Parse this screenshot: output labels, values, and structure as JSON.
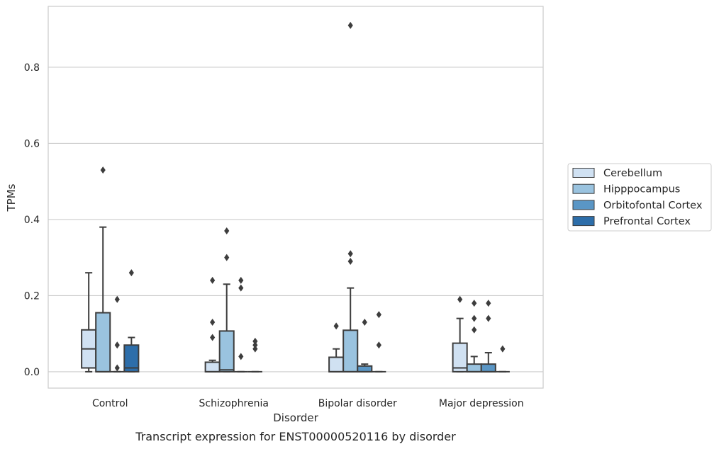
{
  "chart_data": {
    "type": "box",
    "xlabel": "Disorder",
    "ylabel": "TPMs",
    "caption": "Transcript expression for ENST00000520116 by disorder",
    "ylim": [
      -0.043,
      0.96
    ],
    "yticks": [
      0.0,
      0.2,
      0.4,
      0.6,
      0.8
    ],
    "ytick_labels": [
      "0.0",
      "0.2",
      "0.4",
      "0.6",
      "0.8"
    ],
    "grid": "horizontal",
    "legend_position": "right",
    "categories": [
      "Control",
      "Schizophrenia",
      "Bipolar disorder",
      "Major depression"
    ],
    "series": [
      {
        "name": "Cerebellum",
        "color": "#d0e1f2",
        "boxes": [
          {
            "whislo": 0.0,
            "q1": 0.01,
            "med": 0.06,
            "q3": 0.11,
            "whishi": 0.26,
            "fliers": []
          },
          {
            "whislo": 0.0,
            "q1": 0.0,
            "med": 0.0,
            "q3": 0.025,
            "whishi": 0.03,
            "fliers": [
              0.09,
              0.13,
              0.24
            ]
          },
          {
            "whislo": 0.0,
            "q1": 0.0,
            "med": 0.0,
            "q3": 0.038,
            "whishi": 0.06,
            "fliers": [
              0.12
            ]
          },
          {
            "whislo": 0.0,
            "q1": 0.0,
            "med": 0.01,
            "q3": 0.075,
            "whishi": 0.14,
            "fliers": [
              0.19
            ]
          }
        ]
      },
      {
        "name": "Hipppocampus",
        "color": "#9ac3df",
        "boxes": [
          {
            "whislo": 0.0,
            "q1": 0.0,
            "med": 0.0,
            "q3": 0.155,
            "whishi": 0.38,
            "fliers": [
              0.53
            ]
          },
          {
            "whislo": 0.0,
            "q1": 0.0,
            "med": 0.005,
            "q3": 0.107,
            "whishi": 0.23,
            "fliers": [
              0.3,
              0.37
            ]
          },
          {
            "whislo": 0.0,
            "q1": 0.0,
            "med": 0.0,
            "q3": 0.109,
            "whishi": 0.22,
            "fliers": [
              0.29,
              0.31,
              0.91
            ]
          },
          {
            "whislo": 0.0,
            "q1": 0.0,
            "med": 0.0,
            "q3": 0.02,
            "whishi": 0.04,
            "fliers": [
              0.11,
              0.14,
              0.18
            ]
          }
        ]
      },
      {
        "name": "Orbitofontal Cortex",
        "color": "#5a96c5",
        "boxes": [
          {
            "whislo": 0.0,
            "q1": 0.0,
            "med": 0.0,
            "q3": 0.0,
            "whishi": 0.0,
            "fliers": [
              0.01,
              0.07,
              0.19
            ]
          },
          {
            "whislo": 0.0,
            "q1": 0.0,
            "med": 0.0,
            "q3": 0.0,
            "whishi": 0.0,
            "fliers": [
              0.04,
              0.22,
              0.24
            ]
          },
          {
            "whislo": 0.0,
            "q1": 0.0,
            "med": 0.0,
            "q3": 0.015,
            "whishi": 0.02,
            "fliers": [
              0.13
            ]
          },
          {
            "whislo": 0.0,
            "q1": 0.0,
            "med": 0.0,
            "q3": 0.02,
            "whishi": 0.05,
            "fliers": [
              0.14,
              0.18
            ]
          }
        ]
      },
      {
        "name": "Prefrontal Cortex",
        "color": "#2d6eaa",
        "boxes": [
          {
            "whislo": 0.0,
            "q1": 0.0,
            "med": 0.01,
            "q3": 0.07,
            "whishi": 0.09,
            "fliers": [
              0.26
            ]
          },
          {
            "whislo": 0.0,
            "q1": 0.0,
            "med": 0.0,
            "q3": 0.0,
            "whishi": 0.0,
            "fliers": [
              0.06,
              0.07,
              0.08
            ]
          },
          {
            "whislo": 0.0,
            "q1": 0.0,
            "med": 0.0,
            "q3": 0.0,
            "whishi": 0.0,
            "fliers": [
              0.07,
              0.15
            ]
          },
          {
            "whislo": 0.0,
            "q1": 0.0,
            "med": 0.0,
            "q3": 0.0,
            "whishi": 0.0,
            "fliers": [
              0.06
            ]
          }
        ]
      }
    ]
  }
}
